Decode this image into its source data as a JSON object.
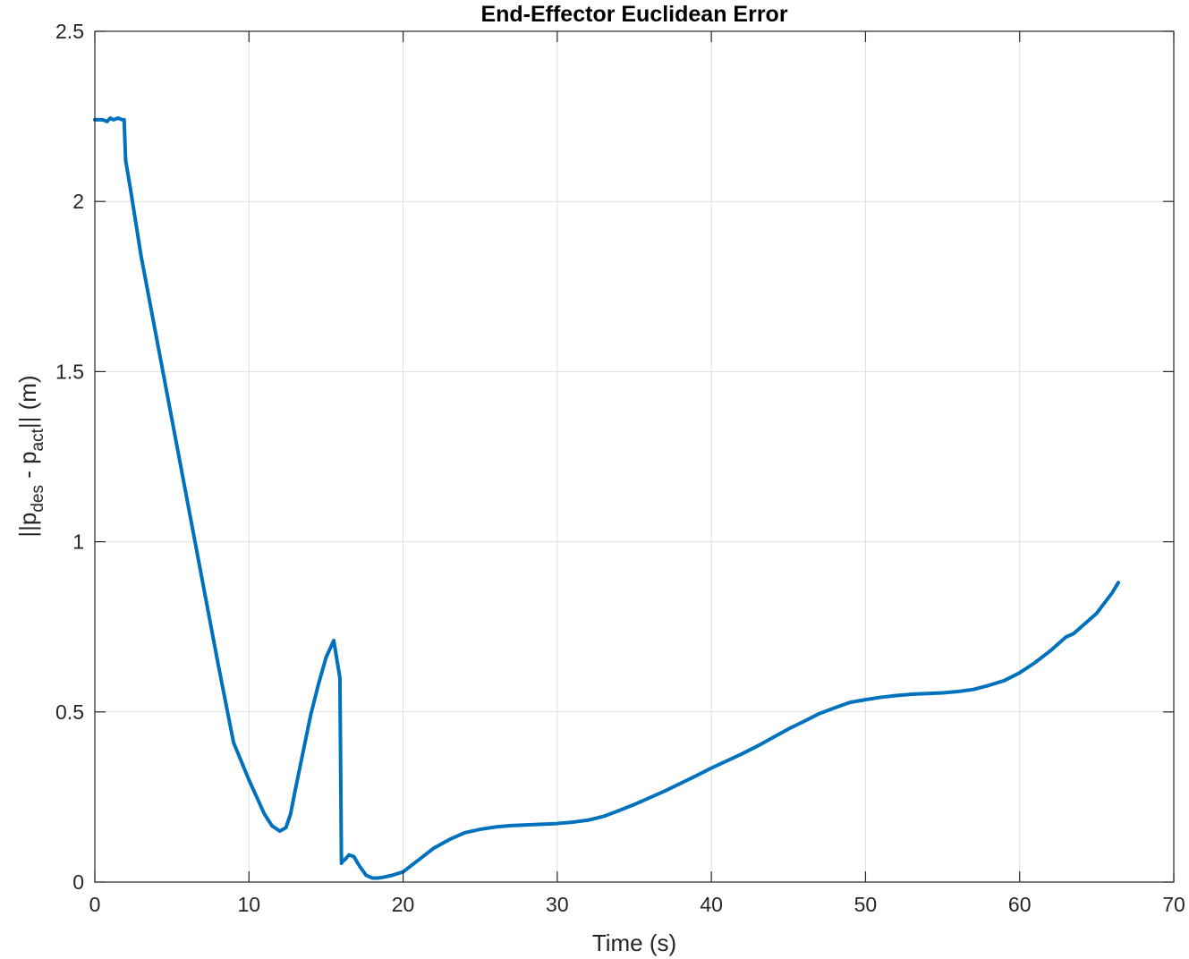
{
  "chart_data": {
    "type": "line",
    "title": "End-Effector Euclidean Error",
    "xlabel": "Time (s)",
    "ylabel": {
      "prefix": "||p",
      "sub1": "des",
      "middle": " - p",
      "sub2": "act",
      "suffix": "|| (m)"
    },
    "xlim": [
      0,
      70
    ],
    "ylim": [
      0,
      2.5
    ],
    "xticks": [
      0,
      10,
      20,
      30,
      40,
      50,
      60,
      70
    ],
    "yticks": [
      0,
      0.5,
      1,
      1.5,
      2,
      2.5
    ],
    "xtick_labels": [
      "0",
      "10",
      "20",
      "30",
      "40",
      "50",
      "60",
      "70"
    ],
    "ytick_labels": [
      "0",
      "0.5",
      "1",
      "1.5",
      "2",
      "2.5"
    ],
    "grid": true,
    "legend": "none",
    "series": [
      {
        "color": "#0072BD",
        "x": [
          0,
          0.5,
          0.8,
          1.0,
          1.2,
          1.5,
          1.8,
          1.9,
          2.0,
          2.3,
          3,
          4,
          5,
          6,
          7,
          8,
          9,
          10,
          11,
          11.5,
          12,
          12.4,
          12.7,
          13,
          13.5,
          14,
          14.5,
          15,
          15.5,
          15.9,
          16.0,
          16.05,
          16.2,
          16.5,
          16.8,
          17.2,
          17.6,
          18,
          18.4,
          18.8,
          19.3,
          20,
          21,
          22,
          23,
          24,
          25,
          26,
          27,
          28,
          29,
          30,
          31,
          32,
          33,
          34,
          35,
          36,
          37,
          38,
          39,
          40,
          41,
          42,
          43,
          44,
          45,
          46,
          47,
          48,
          49,
          50,
          51,
          52,
          53,
          54,
          55,
          56,
          57,
          58,
          59,
          60,
          61,
          62,
          63,
          63.5,
          64,
          65,
          66,
          66.4
        ],
        "y": [
          2.24,
          2.24,
          2.235,
          2.245,
          2.24,
          2.245,
          2.24,
          2.24,
          2.12,
          2.04,
          1.84,
          1.6,
          1.36,
          1.12,
          0.88,
          0.64,
          0.41,
          0.3,
          0.2,
          0.165,
          0.15,
          0.16,
          0.2,
          0.27,
          0.38,
          0.49,
          0.58,
          0.66,
          0.71,
          0.6,
          0.055,
          0.06,
          0.065,
          0.08,
          0.075,
          0.045,
          0.02,
          0.012,
          0.012,
          0.015,
          0.02,
          0.03,
          0.065,
          0.1,
          0.125,
          0.145,
          0.155,
          0.162,
          0.166,
          0.168,
          0.17,
          0.172,
          0.176,
          0.182,
          0.193,
          0.21,
          0.228,
          0.248,
          0.268,
          0.29,
          0.312,
          0.335,
          0.356,
          0.377,
          0.4,
          0.425,
          0.45,
          0.472,
          0.495,
          0.512,
          0.528,
          0.536,
          0.543,
          0.548,
          0.552,
          0.554,
          0.556,
          0.56,
          0.566,
          0.578,
          0.592,
          0.615,
          0.645,
          0.68,
          0.72,
          0.73,
          0.75,
          0.79,
          0.85,
          0.88
        ]
      }
    ]
  }
}
